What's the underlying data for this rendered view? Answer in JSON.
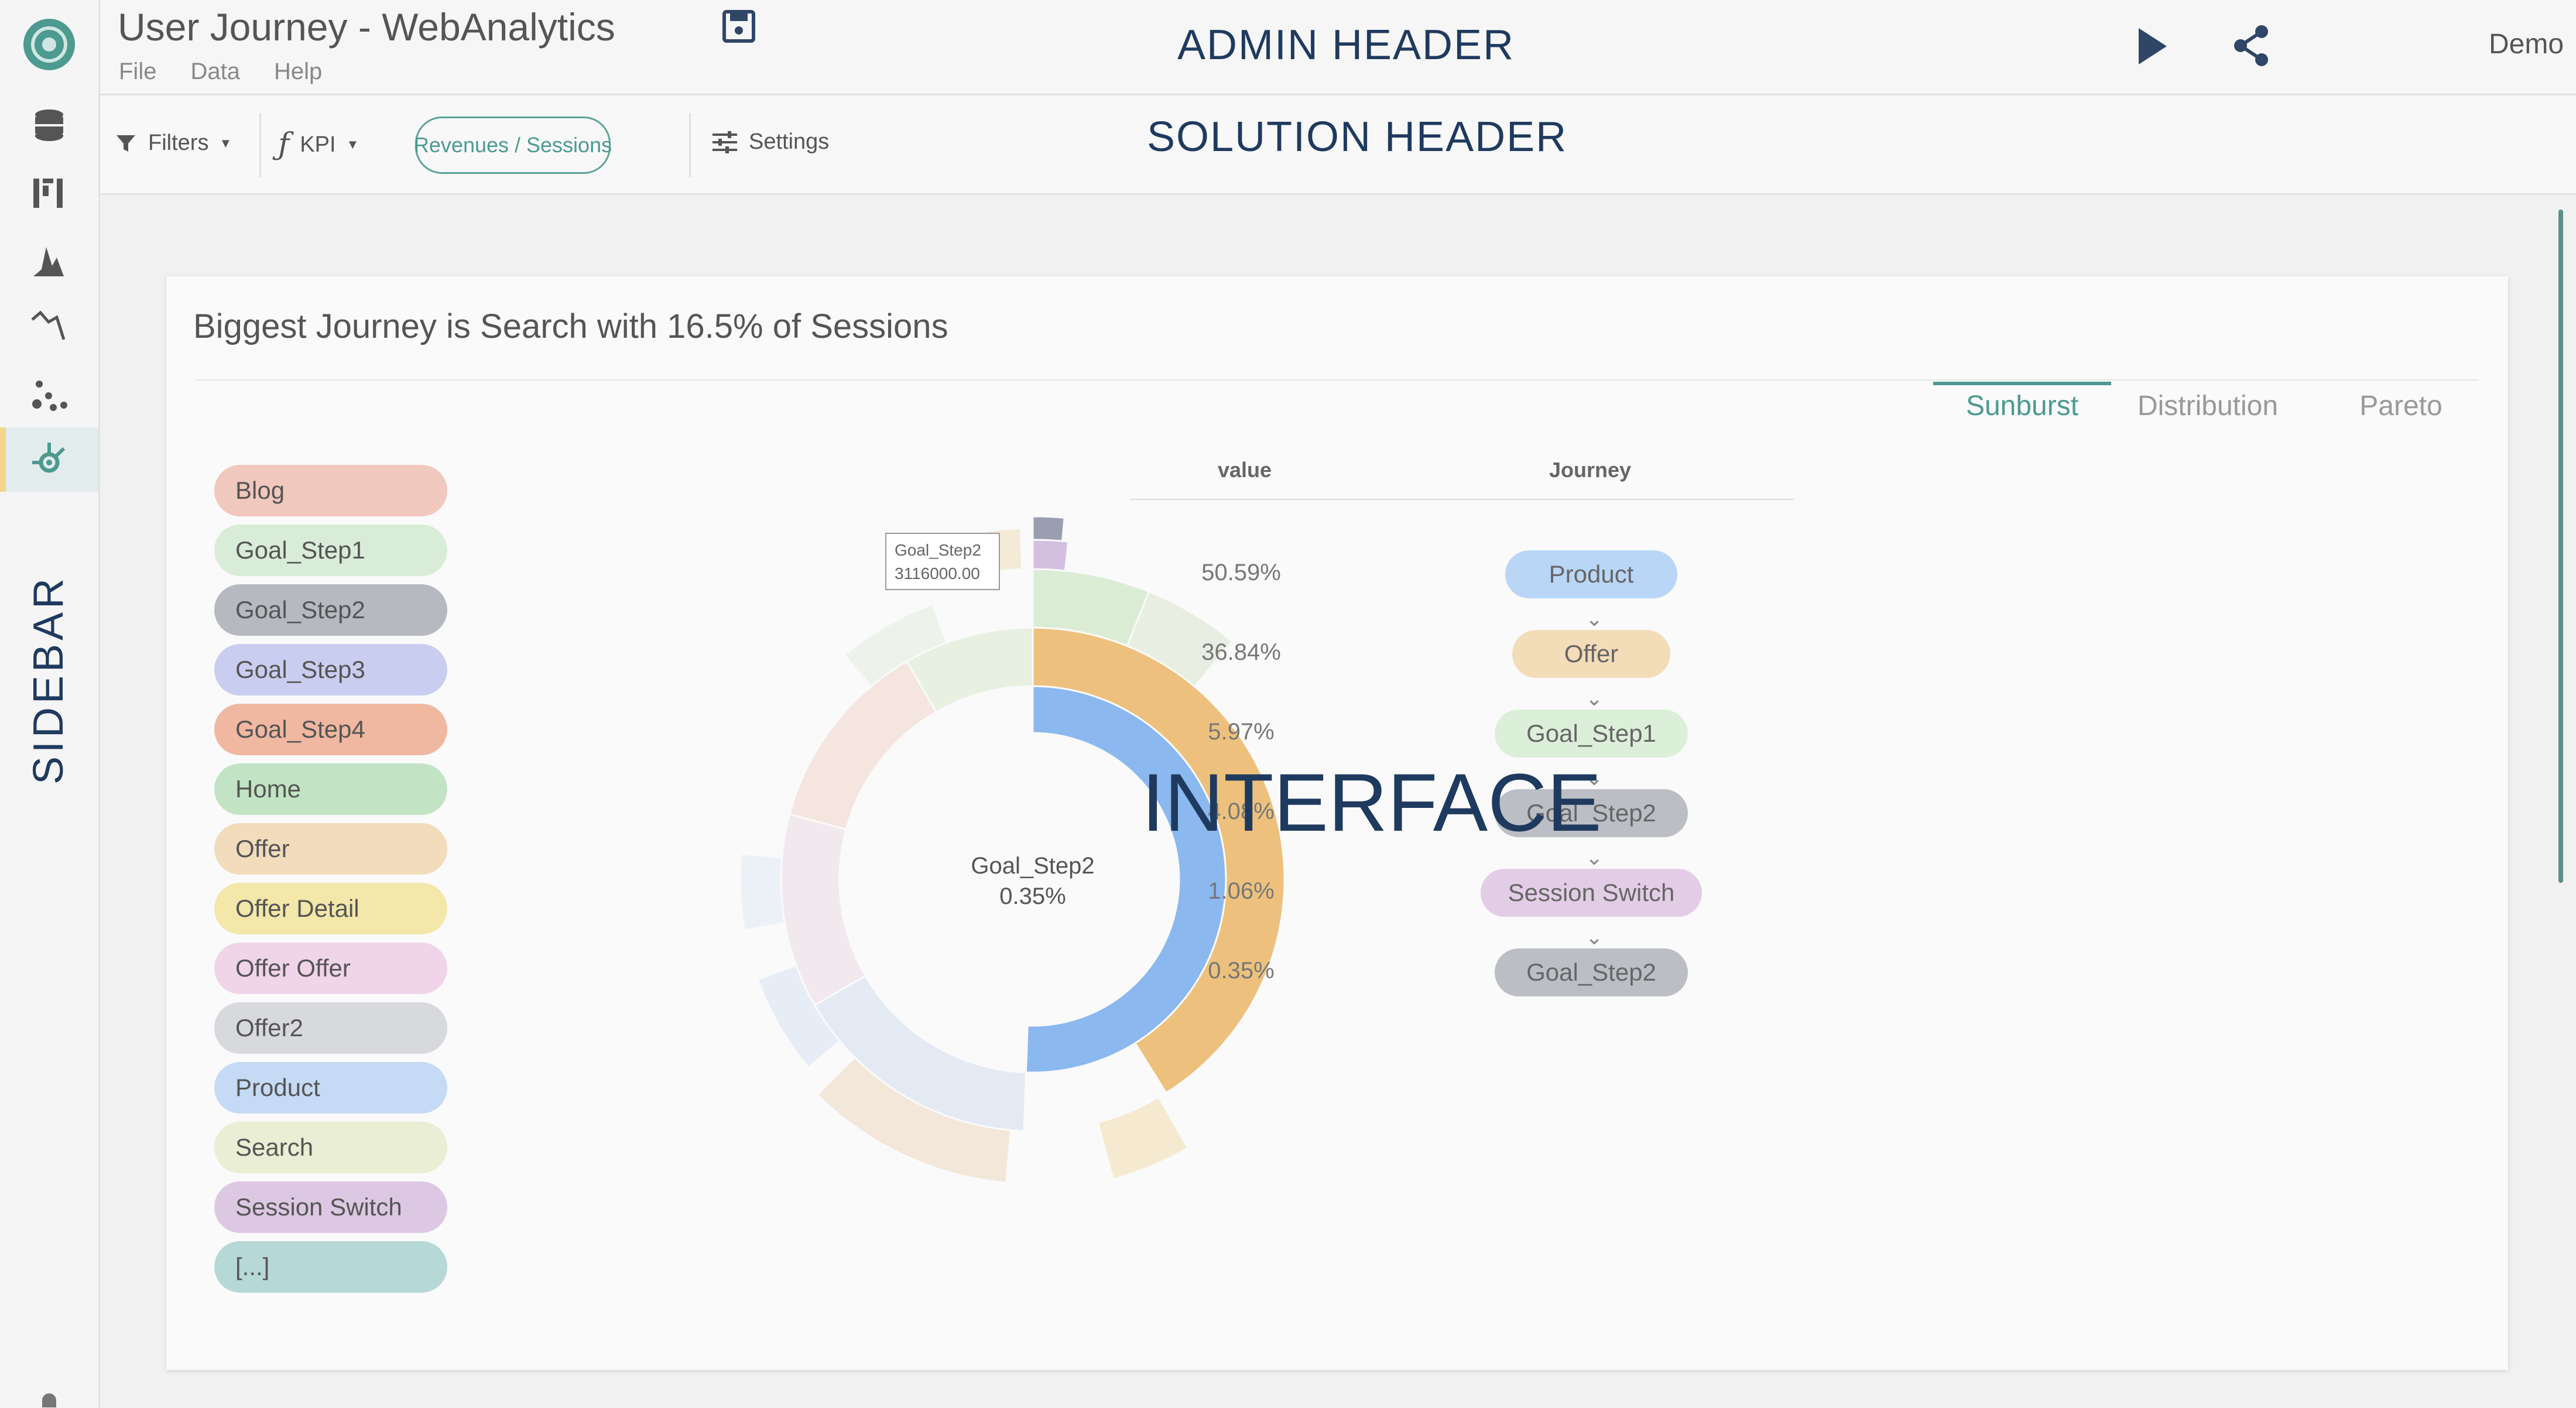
{
  "app": {
    "title": "User Journey - WebAnalytics",
    "menu": [
      "File",
      "Data",
      "Help"
    ],
    "user": "Demo"
  },
  "annotations": {
    "admin_header": "ADMIN HEADER",
    "solution_header": "SOLUTION HEADER",
    "sidebar": "SIDEBAR",
    "interface": "INTERFACE"
  },
  "toolbar": {
    "filters": "Filters",
    "kpi": "KPI",
    "kpi_value": "Revenues / Sessions",
    "settings": "Settings"
  },
  "sidebar_icons": [
    "database-icon",
    "bar-chart-icon",
    "distribution-icon",
    "line-chart-icon",
    "scatter-icon",
    "journey-icon"
  ],
  "card": {
    "title": "Biggest Journey is Search with 16.5% of Sessions",
    "tabs": [
      "Sunburst",
      "Distribution",
      "Pareto"
    ],
    "active_tab": "Sunburst"
  },
  "legend": [
    {
      "label": "Blog",
      "color": "#f1c8bd"
    },
    {
      "label": "Goal_Step1",
      "color": "#d9ecd7"
    },
    {
      "label": "Goal_Step2",
      "color": "#b7b9c1"
    },
    {
      "label": "Goal_Step3",
      "color": "#c9cdef"
    },
    {
      "label": "Goal_Step4",
      "color": "#f0b7a1"
    },
    {
      "label": "Home",
      "color": "#c2e4c4"
    },
    {
      "label": "Offer",
      "color": "#f2dcbc"
    },
    {
      "label": "Offer Detail",
      "color": "#f3e7a9"
    },
    {
      "label": "Offer Offer",
      "color": "#f0d4ea"
    },
    {
      "label": "Offer2",
      "color": "#d7d9dc"
    },
    {
      "label": "Product",
      "color": "#c5daf4"
    },
    {
      "label": "Search",
      "color": "#e9eed4"
    },
    {
      "label": "Session Switch",
      "color": "#ddc8e3"
    },
    {
      "label": "[...]",
      "color": "#b6d8d6"
    }
  ],
  "chart": {
    "center_label": "Goal_Step2",
    "center_value": "0.35%",
    "tooltip_label": "Goal_Step2",
    "tooltip_value": "3116000.00"
  },
  "table": {
    "headers": [
      "value",
      "Journey"
    ],
    "rows": [
      {
        "value": "50.59%",
        "journey": "Product",
        "color": "#b9d6f6"
      },
      {
        "value": "36.84%",
        "journey": "Offer",
        "color": "#f3dcb8"
      },
      {
        "value": "5.97%",
        "journey": "Goal_Step1",
        "color": "#dcefd9"
      },
      {
        "value": "4.08%",
        "journey": "Goal_Step2",
        "color": "#bcbec5"
      },
      {
        "value": "1.06%",
        "journey": "Session Switch",
        "color": "#e3cde6"
      },
      {
        "value": "0.35%",
        "journey": "Goal_Step2",
        "color": "#bcbec5"
      }
    ]
  }
}
